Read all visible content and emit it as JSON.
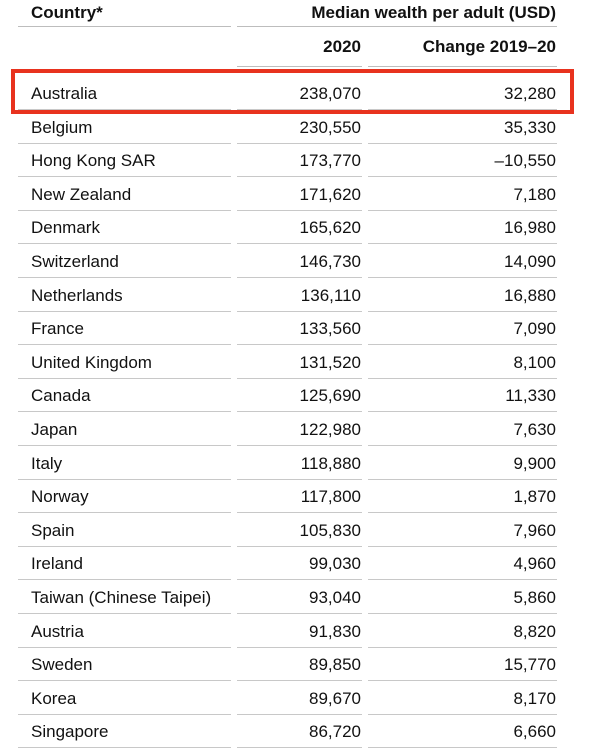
{
  "header": {
    "country_label": "Country*",
    "wealth_label": "Median wealth per adult (USD)",
    "col_2020": "2020",
    "col_change": "Change 2019–20"
  },
  "highlight_color": "#e8321e",
  "rows": [
    {
      "country": "Australia",
      "v2020": "238,070",
      "change": "32,280"
    },
    {
      "country": "Belgium",
      "v2020": "230,550",
      "change": "35,330"
    },
    {
      "country": "Hong Kong SAR",
      "v2020": "173,770",
      "change": "–10,550"
    },
    {
      "country": "New Zealand",
      "v2020": "171,620",
      "change": "7,180"
    },
    {
      "country": "Denmark",
      "v2020": "165,620",
      "change": "16,980"
    },
    {
      "country": "Switzerland",
      "v2020": "146,730",
      "change": "14,090"
    },
    {
      "country": "Netherlands",
      "v2020": "136,110",
      "change": "16,880"
    },
    {
      "country": "France",
      "v2020": "133,560",
      "change": "7,090"
    },
    {
      "country": "United Kingdom",
      "v2020": "131,520",
      "change": "8,100"
    },
    {
      "country": "Canada",
      "v2020": "125,690",
      "change": "11,330"
    },
    {
      "country": "Japan",
      "v2020": "122,980",
      "change": "7,630"
    },
    {
      "country": "Italy",
      "v2020": "118,880",
      "change": "9,900"
    },
    {
      "country": "Norway",
      "v2020": "117,800",
      "change": "1,870"
    },
    {
      "country": "Spain",
      "v2020": "105,830",
      "change": "7,960"
    },
    {
      "country": "Ireland",
      "v2020": "99,030",
      "change": "4,960"
    },
    {
      "country": "Taiwan (Chinese Taipei)",
      "v2020": "93,040",
      "change": "5,860"
    },
    {
      "country": "Austria",
      "v2020": "91,830",
      "change": "8,820"
    },
    {
      "country": "Sweden",
      "v2020": "89,850",
      "change": "15,770"
    },
    {
      "country": "Korea",
      "v2020": "89,670",
      "change": "8,170"
    },
    {
      "country": "Singapore",
      "v2020": "86,720",
      "change": "6,660"
    }
  ]
}
